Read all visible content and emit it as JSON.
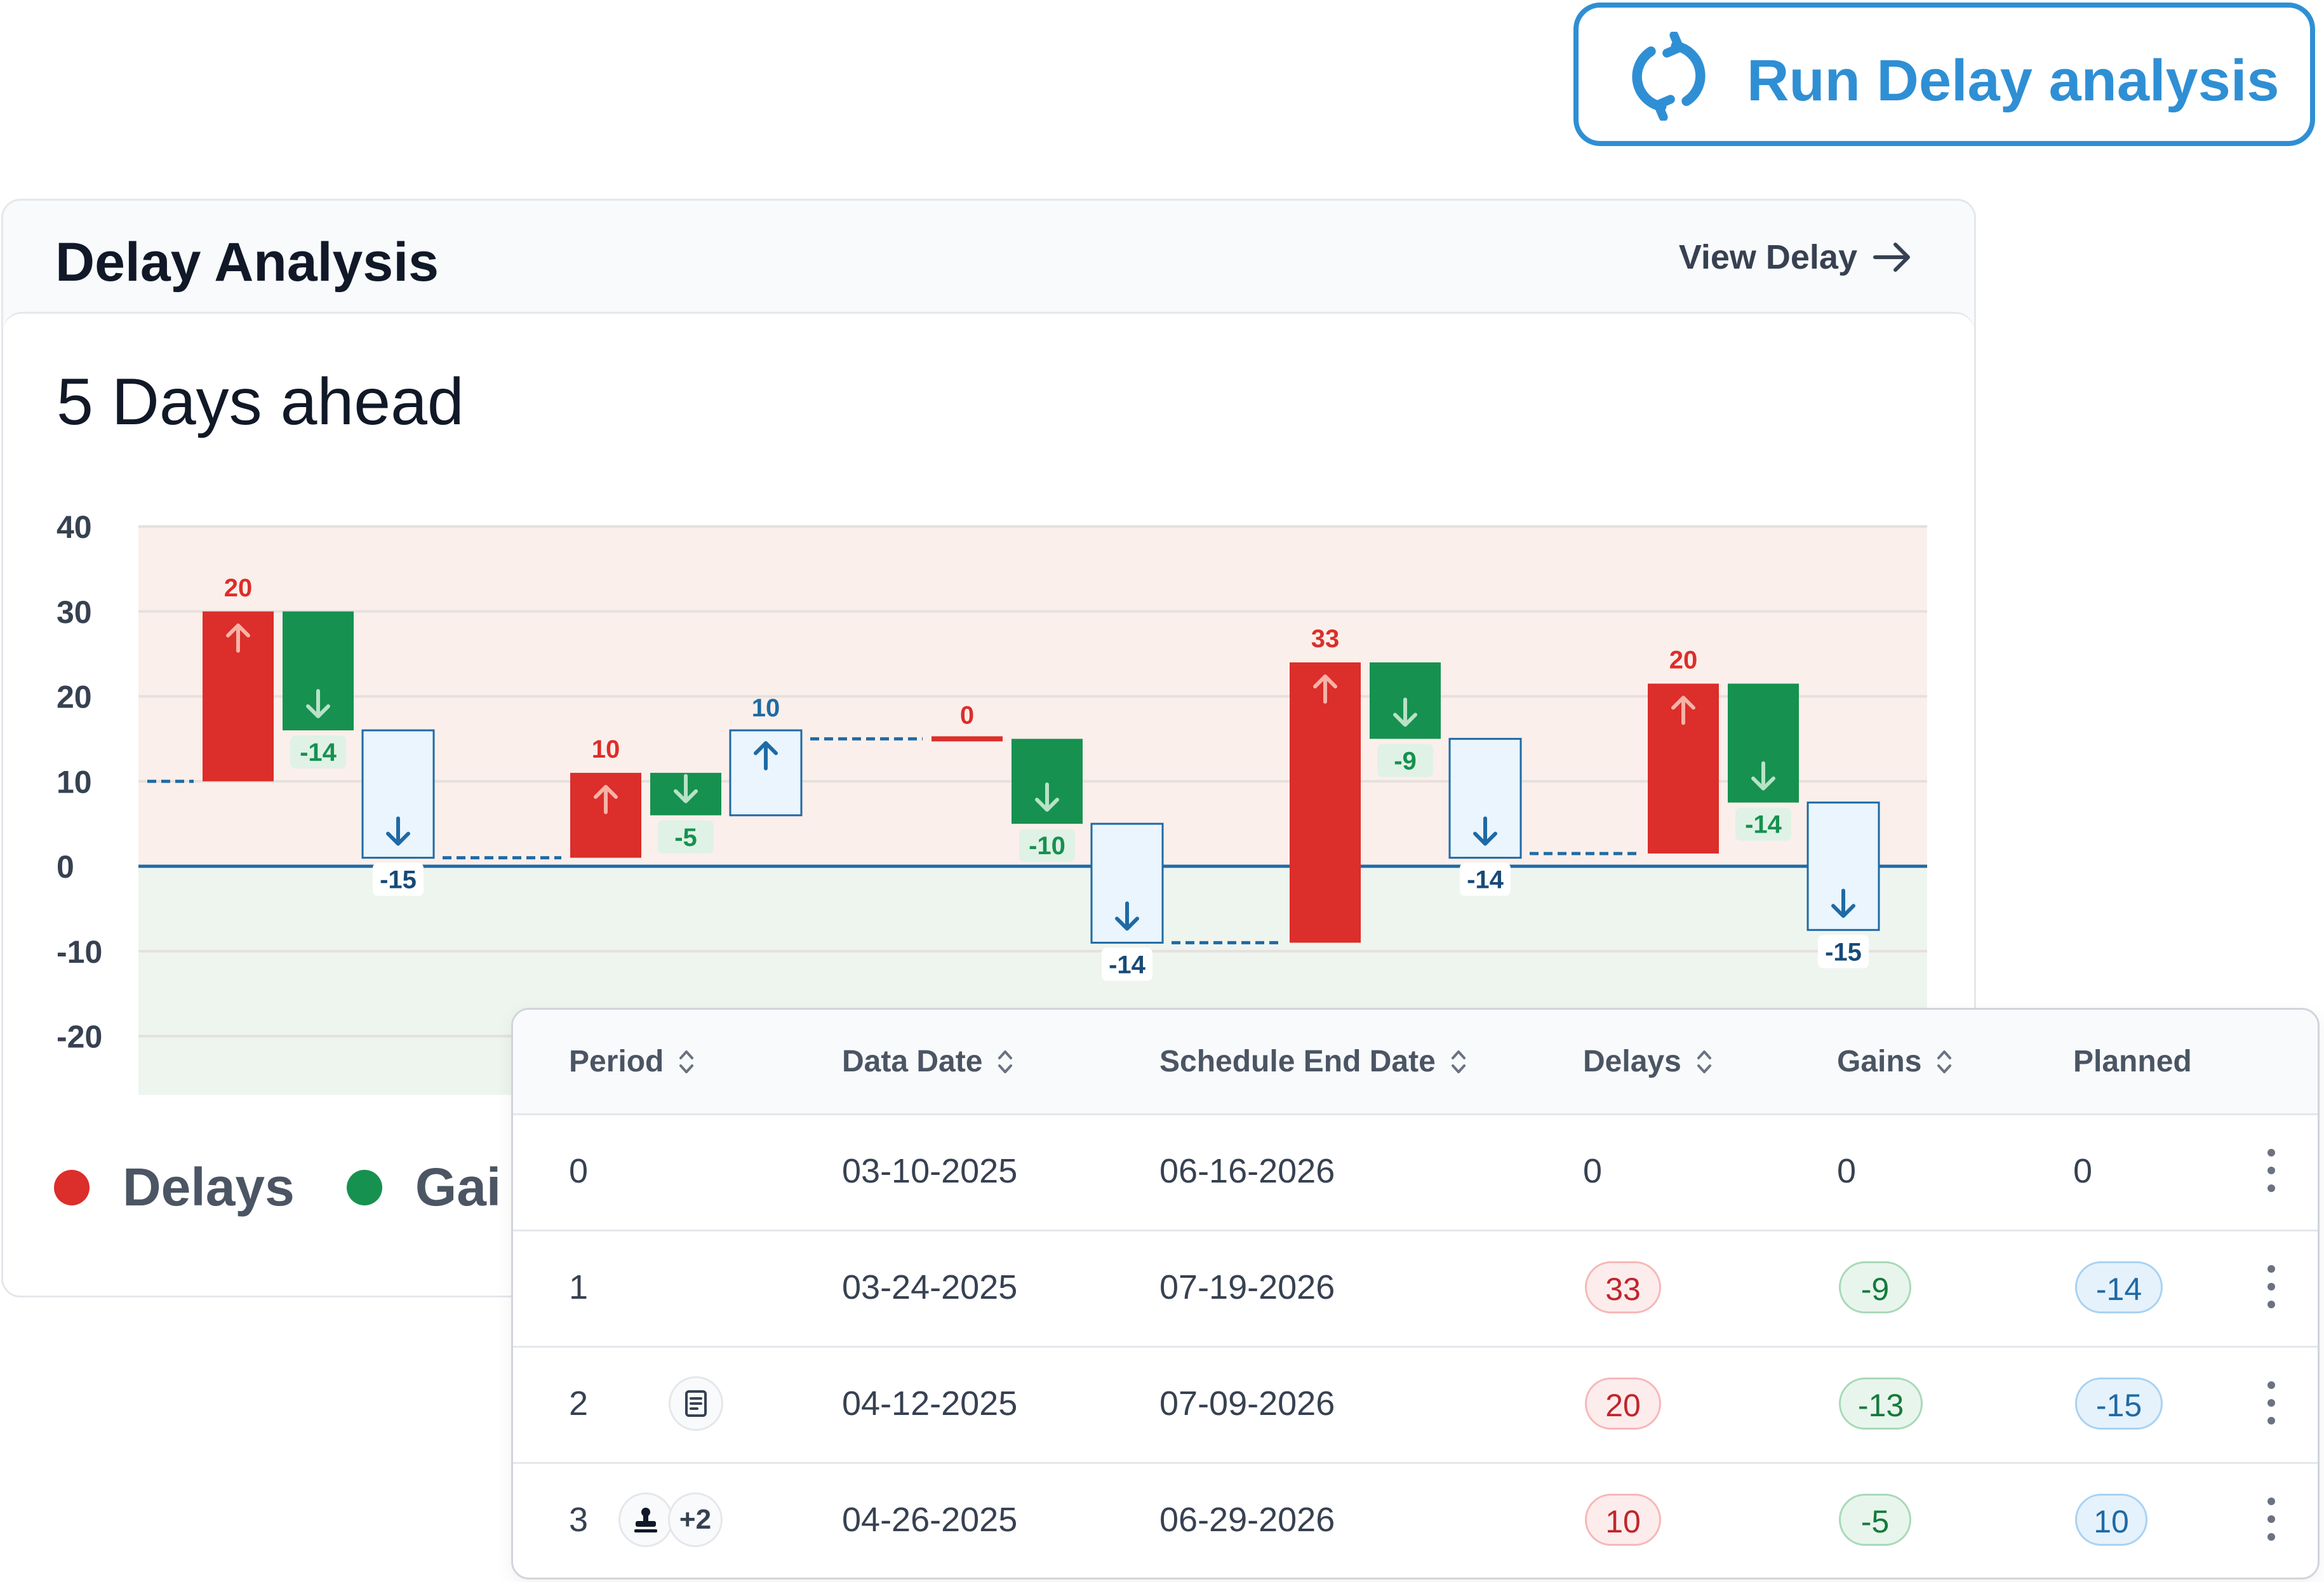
{
  "run_button": {
    "label": "Run Delay analysis",
    "icon": "refresh-icon",
    "color": "#2f8fd4"
  },
  "card": {
    "title": "Delay Analysis",
    "view_link": "View Delay",
    "headline": "5 Days ahead"
  },
  "chart_data": {
    "type": "waterfall",
    "ylim": [
      -20,
      40
    ],
    "yticks": [
      "40",
      "30",
      "20",
      "10",
      "0",
      "-10",
      "-20"
    ],
    "colors": {
      "delays": "#dc2e2a",
      "gains": "#169150",
      "planned": "#1f6aa5"
    },
    "groups": [
      {
        "start": 10,
        "delay": 20,
        "delay_label": "20",
        "gain": -14,
        "gain_label": "-14",
        "planned": -15,
        "planned_label": "-15"
      },
      {
        "start": 1,
        "delay": 10,
        "delay_label": "10",
        "gain": -5,
        "gain_label": "-5",
        "planned": 10,
        "planned_label": "10"
      },
      {
        "start": 15,
        "delay": 0,
        "delay_label": "0",
        "gain": -10,
        "gain_label": "-10",
        "planned": -14,
        "planned_label": "-14"
      },
      {
        "start": -9,
        "delay": 33,
        "delay_label": "33",
        "gain": -9,
        "gain_label": "-9",
        "planned": -14,
        "planned_label": "-14"
      },
      {
        "start": 1.5,
        "delay": 20,
        "delay_label": "20",
        "gain": -14,
        "gain_label": "-14",
        "planned": -15,
        "planned_label": "-15"
      }
    ],
    "legend": [
      {
        "name": "Delays",
        "color": "#dc2e2a"
      },
      {
        "name": "Gai",
        "color": "#169150"
      }
    ]
  },
  "table": {
    "columns": [
      "Period",
      "Data Date",
      "Schedule End Date",
      "Delays",
      "Gains",
      "Planned"
    ],
    "rows": [
      {
        "period": "0",
        "data_date": "03-10-2025",
        "end_date": "06-16-2026",
        "delays": "0",
        "gains": "0",
        "planned": "0",
        "pills": false
      },
      {
        "period": "1",
        "data_date": "03-24-2025",
        "end_date": "07-19-2026",
        "delays": "33",
        "gains": "-9",
        "planned": "-14",
        "pills": true
      },
      {
        "period": "2",
        "data_date": "04-12-2025",
        "end_date": "07-09-2026",
        "delays": "20",
        "gains": "-13",
        "planned": "-15",
        "pills": true,
        "icon": "document-icon"
      },
      {
        "period": "3",
        "data_date": "04-26-2025",
        "end_date": "06-29-2026",
        "delays": "10",
        "gains": "-5",
        "planned": "10",
        "pills": true,
        "icon": "stamp-icon",
        "extra": "+2"
      }
    ]
  }
}
